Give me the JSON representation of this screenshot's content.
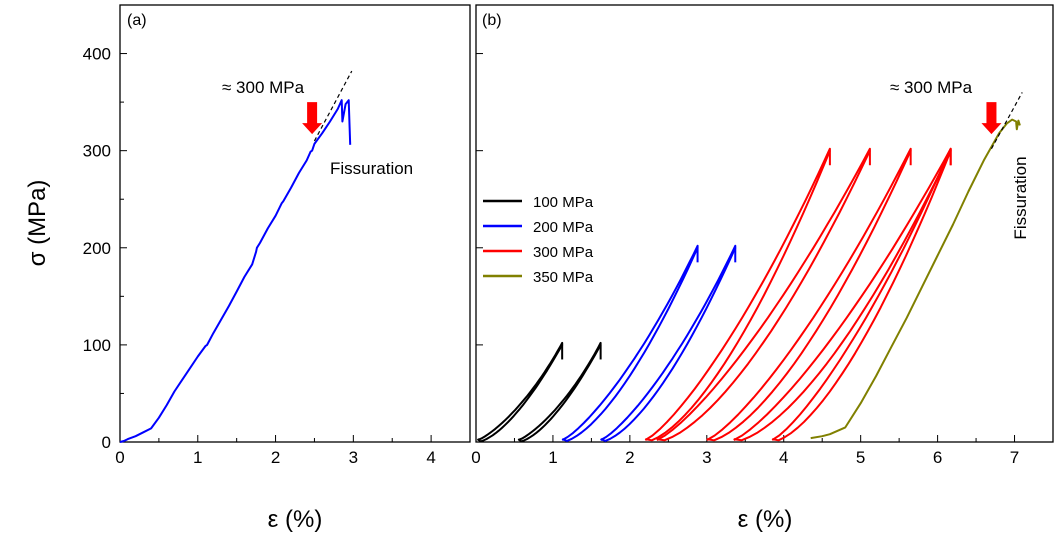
{
  "chart_data": [
    {
      "panel_label": "(a)",
      "type": "line",
      "xlabel": "ε (%)",
      "ylabel": "σ (MPa)",
      "xlim": [
        0,
        4.5
      ],
      "ylim": [
        0,
        450
      ],
      "xticks": [
        "0",
        "1",
        "2",
        "3",
        "4"
      ],
      "yticks": [
        "0",
        "100",
        "200",
        "300",
        "400"
      ],
      "grid": false,
      "series": [
        {
          "color": "#0000ff",
          "points": [
            [
              0,
              0
            ],
            [
              0.05,
              1
            ],
            [
              0.1,
              3
            ],
            [
              0.2,
              6
            ],
            [
              0.3,
              10
            ],
            [
              0.4,
              14
            ],
            [
              0.5,
              25
            ],
            [
              0.6,
              38
            ],
            [
              0.7,
              52
            ],
            [
              0.8,
              64
            ],
            [
              0.9,
              76
            ],
            [
              1.0,
              88
            ],
            [
              1.1,
              99
            ],
            [
              1.12,
              100
            ],
            [
              1.2,
              112
            ],
            [
              1.3,
              126
            ],
            [
              1.4,
              140
            ],
            [
              1.5,
              155
            ],
            [
              1.6,
              170
            ],
            [
              1.7,
              183
            ],
            [
              1.75,
              196
            ],
            [
              1.76,
              200
            ],
            [
              1.8,
              205
            ],
            [
              1.9,
              220
            ],
            [
              2.0,
              233
            ],
            [
              2.08,
              246
            ],
            [
              2.1,
              248
            ],
            [
              2.2,
              262
            ],
            [
              2.3,
              277
            ],
            [
              2.4,
              290
            ],
            [
              2.45,
              299
            ],
            [
              2.47,
              300
            ],
            [
              2.5,
              307
            ],
            [
              2.6,
              318
            ],
            [
              2.7,
              330
            ],
            [
              2.8,
              343
            ],
            [
              2.85,
              352
            ],
            [
              2.86,
              330
            ],
            [
              2.9,
              348
            ],
            [
              2.94,
              352
            ],
            [
              2.96,
              306
            ]
          ]
        }
      ],
      "annotations": [
        {
          "text": "≈ 300 MPa",
          "x": 2.85,
          "y": 375
        },
        {
          "text": "Fissuration",
          "x": 2.7,
          "y": 290
        }
      ],
      "tangent_line": [
        [
          2.5,
          310
        ],
        [
          2.98,
          382
        ]
      ],
      "arrow": {
        "x": 2.47,
        "y_from": 350,
        "y_to": 317,
        "color": "#ff0000"
      }
    },
    {
      "panel_label": "(b)",
      "type": "line",
      "xlabel": "ε (%)",
      "ylabel": "",
      "xlim": [
        0,
        7.5
      ],
      "ylim": [
        0,
        450
      ],
      "xticks": [
        "0",
        "1",
        "2",
        "3",
        "4",
        "5",
        "6",
        "7"
      ],
      "yticks": [],
      "grid": false,
      "legend": {
        "position": "left",
        "entries": [
          "100 MPa",
          "200 MPa",
          "300 MPa",
          "350 MPa"
        ]
      },
      "series": [
        {
          "name": "100 MPa",
          "color": "#000000",
          "cycles": [
            {
              "start": 0.02,
              "end": 1.12,
              "peak": 100
            },
            {
              "start": 0.55,
              "end": 1.62,
              "peak": 100
            }
          ]
        },
        {
          "name": "200 MPa",
          "color": "#0000ff",
          "cycles": [
            {
              "start": 1.12,
              "end": 2.88,
              "peak": 200
            },
            {
              "start": 1.62,
              "end": 3.37,
              "peak": 200
            }
          ]
        },
        {
          "name": "300 MPa",
          "color": "#ff0000",
          "cycles": [
            {
              "start": 2.2,
              "end": 4.6,
              "peak": 300
            },
            {
              "start": 2.35,
              "end": 5.12,
              "peak": 300
            },
            {
              "start": 3.0,
              "end": 5.65,
              "peak": 300
            },
            {
              "start": 3.35,
              "end": 6.17,
              "peak": 300
            },
            {
              "start": 3.85,
              "end": 6.17,
              "peak": 300
            }
          ]
        },
        {
          "name": "350 MPa",
          "color": "#808000",
          "points": [
            [
              4.35,
              4
            ],
            [
              4.5,
              6
            ],
            [
              4.6,
              8
            ],
            [
              4.8,
              15
            ],
            [
              5.0,
              40
            ],
            [
              5.2,
              68
            ],
            [
              5.4,
              98
            ],
            [
              5.6,
              128
            ],
            [
              5.8,
              160
            ],
            [
              6.0,
              192
            ],
            [
              6.2,
              224
            ],
            [
              6.4,
              258
            ],
            [
              6.6,
              290
            ],
            [
              6.7,
              304
            ],
            [
              6.8,
              318
            ],
            [
              6.9,
              328
            ],
            [
              6.97,
              332
            ],
            [
              7.02,
              330
            ],
            [
              7.03,
              322
            ],
            [
              7.05,
              331
            ],
            [
              7.07,
              326
            ]
          ]
        }
      ],
      "annotations": [
        {
          "text": "≈ 300 MPa",
          "x": 6.2,
          "y": 365
        },
        {
          "text": "Fissuration",
          "x": 7.05,
          "y": 310
        }
      ],
      "tangent_line": [
        [
          6.7,
          302
        ],
        [
          7.1,
          360
        ]
      ],
      "arrow": {
        "x": 6.7,
        "y_from": 350,
        "y_to": 317,
        "color": "#ff0000"
      }
    }
  ]
}
